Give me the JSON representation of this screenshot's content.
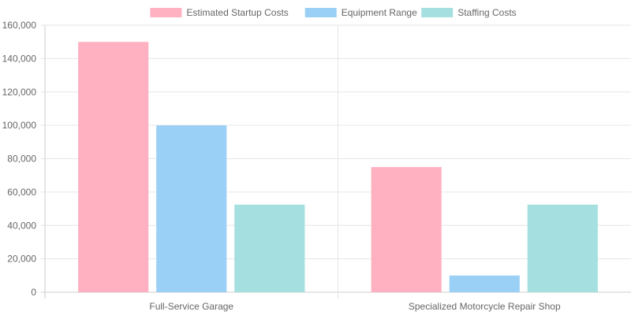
{
  "chart_data": {
    "type": "bar",
    "categories": [
      "Full-Service Garage",
      "Specialized Motorcycle Repair Shop"
    ],
    "series": [
      {
        "name": "Estimated Startup Costs",
        "values": [
          150000,
          75000
        ],
        "color": "#ffb1c1",
        "stroke": "#ff6384"
      },
      {
        "name": "Equipment Range",
        "values": [
          100000,
          10000
        ],
        "color": "#9ad0f5",
        "stroke": "#36a2eb"
      },
      {
        "name": "Staffing Costs",
        "values": [
          52500,
          52500
        ],
        "color": "#a5dfdf",
        "stroke": "#4bc0c0"
      }
    ],
    "ylim": [
      0,
      160000
    ],
    "yticks": [
      "0",
      "20,000",
      "40,000",
      "60,000",
      "80,000",
      "100,000",
      "120,000",
      "140,000",
      "160,000"
    ],
    "ytick_values": [
      0,
      20000,
      40000,
      60000,
      80000,
      100000,
      120000,
      140000,
      160000
    ],
    "grid": true,
    "legend_position": "top"
  }
}
